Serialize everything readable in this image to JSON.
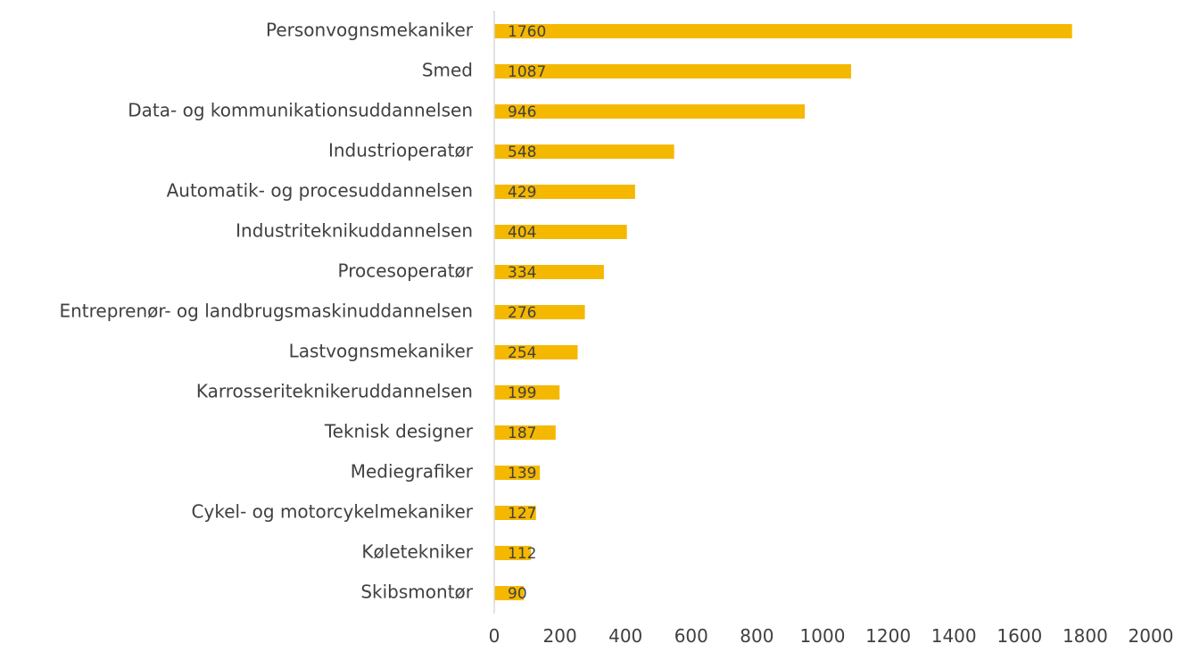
{
  "chart_data": {
    "type": "bar",
    "orientation": "horizontal",
    "categories": [
      "Personvognsmekaniker",
      "Smed",
      "Data- og kommunikationsuddannelsen",
      "Industrioperatør",
      "Automatik- og procesuddannelsen",
      "Industriteknikuddannelsen",
      "Procesoperatør",
      "Entreprenør- og landbrugsmaskinuddannelsen",
      "Lastvognsmekaniker",
      "Karrosseriteknikeruddannelsen",
      "Teknisk designer",
      "Mediegrafiker",
      "Cykel- og motorcykelmekaniker",
      "Køletekniker",
      "Skibsmontør"
    ],
    "values": [
      1760,
      1087,
      946,
      548,
      429,
      404,
      334,
      276,
      254,
      199,
      187,
      139,
      127,
      112,
      90
    ],
    "data_labels": [
      "1760",
      "1087",
      "946",
      "548",
      "429",
      "404",
      "334",
      "276",
      "254",
      "199",
      "187",
      "139",
      "127",
      "112",
      "90"
    ],
    "title": "",
    "xlabel": "",
    "ylabel": "",
    "xlim": [
      0,
      2000
    ],
    "x_ticks": [
      0,
      200,
      400,
      600,
      800,
      1000,
      1200,
      1400,
      1600,
      1800,
      2000
    ],
    "x_tick_labels": [
      "0",
      "200",
      "400",
      "600",
      "800",
      "1000",
      "1200",
      "1400",
      "1600",
      "1800",
      "2000"
    ],
    "grid": false,
    "legend": "none",
    "colors": {
      "bar": "#F5B800",
      "axis": "#D9D9D9",
      "text": "#404040"
    }
  }
}
